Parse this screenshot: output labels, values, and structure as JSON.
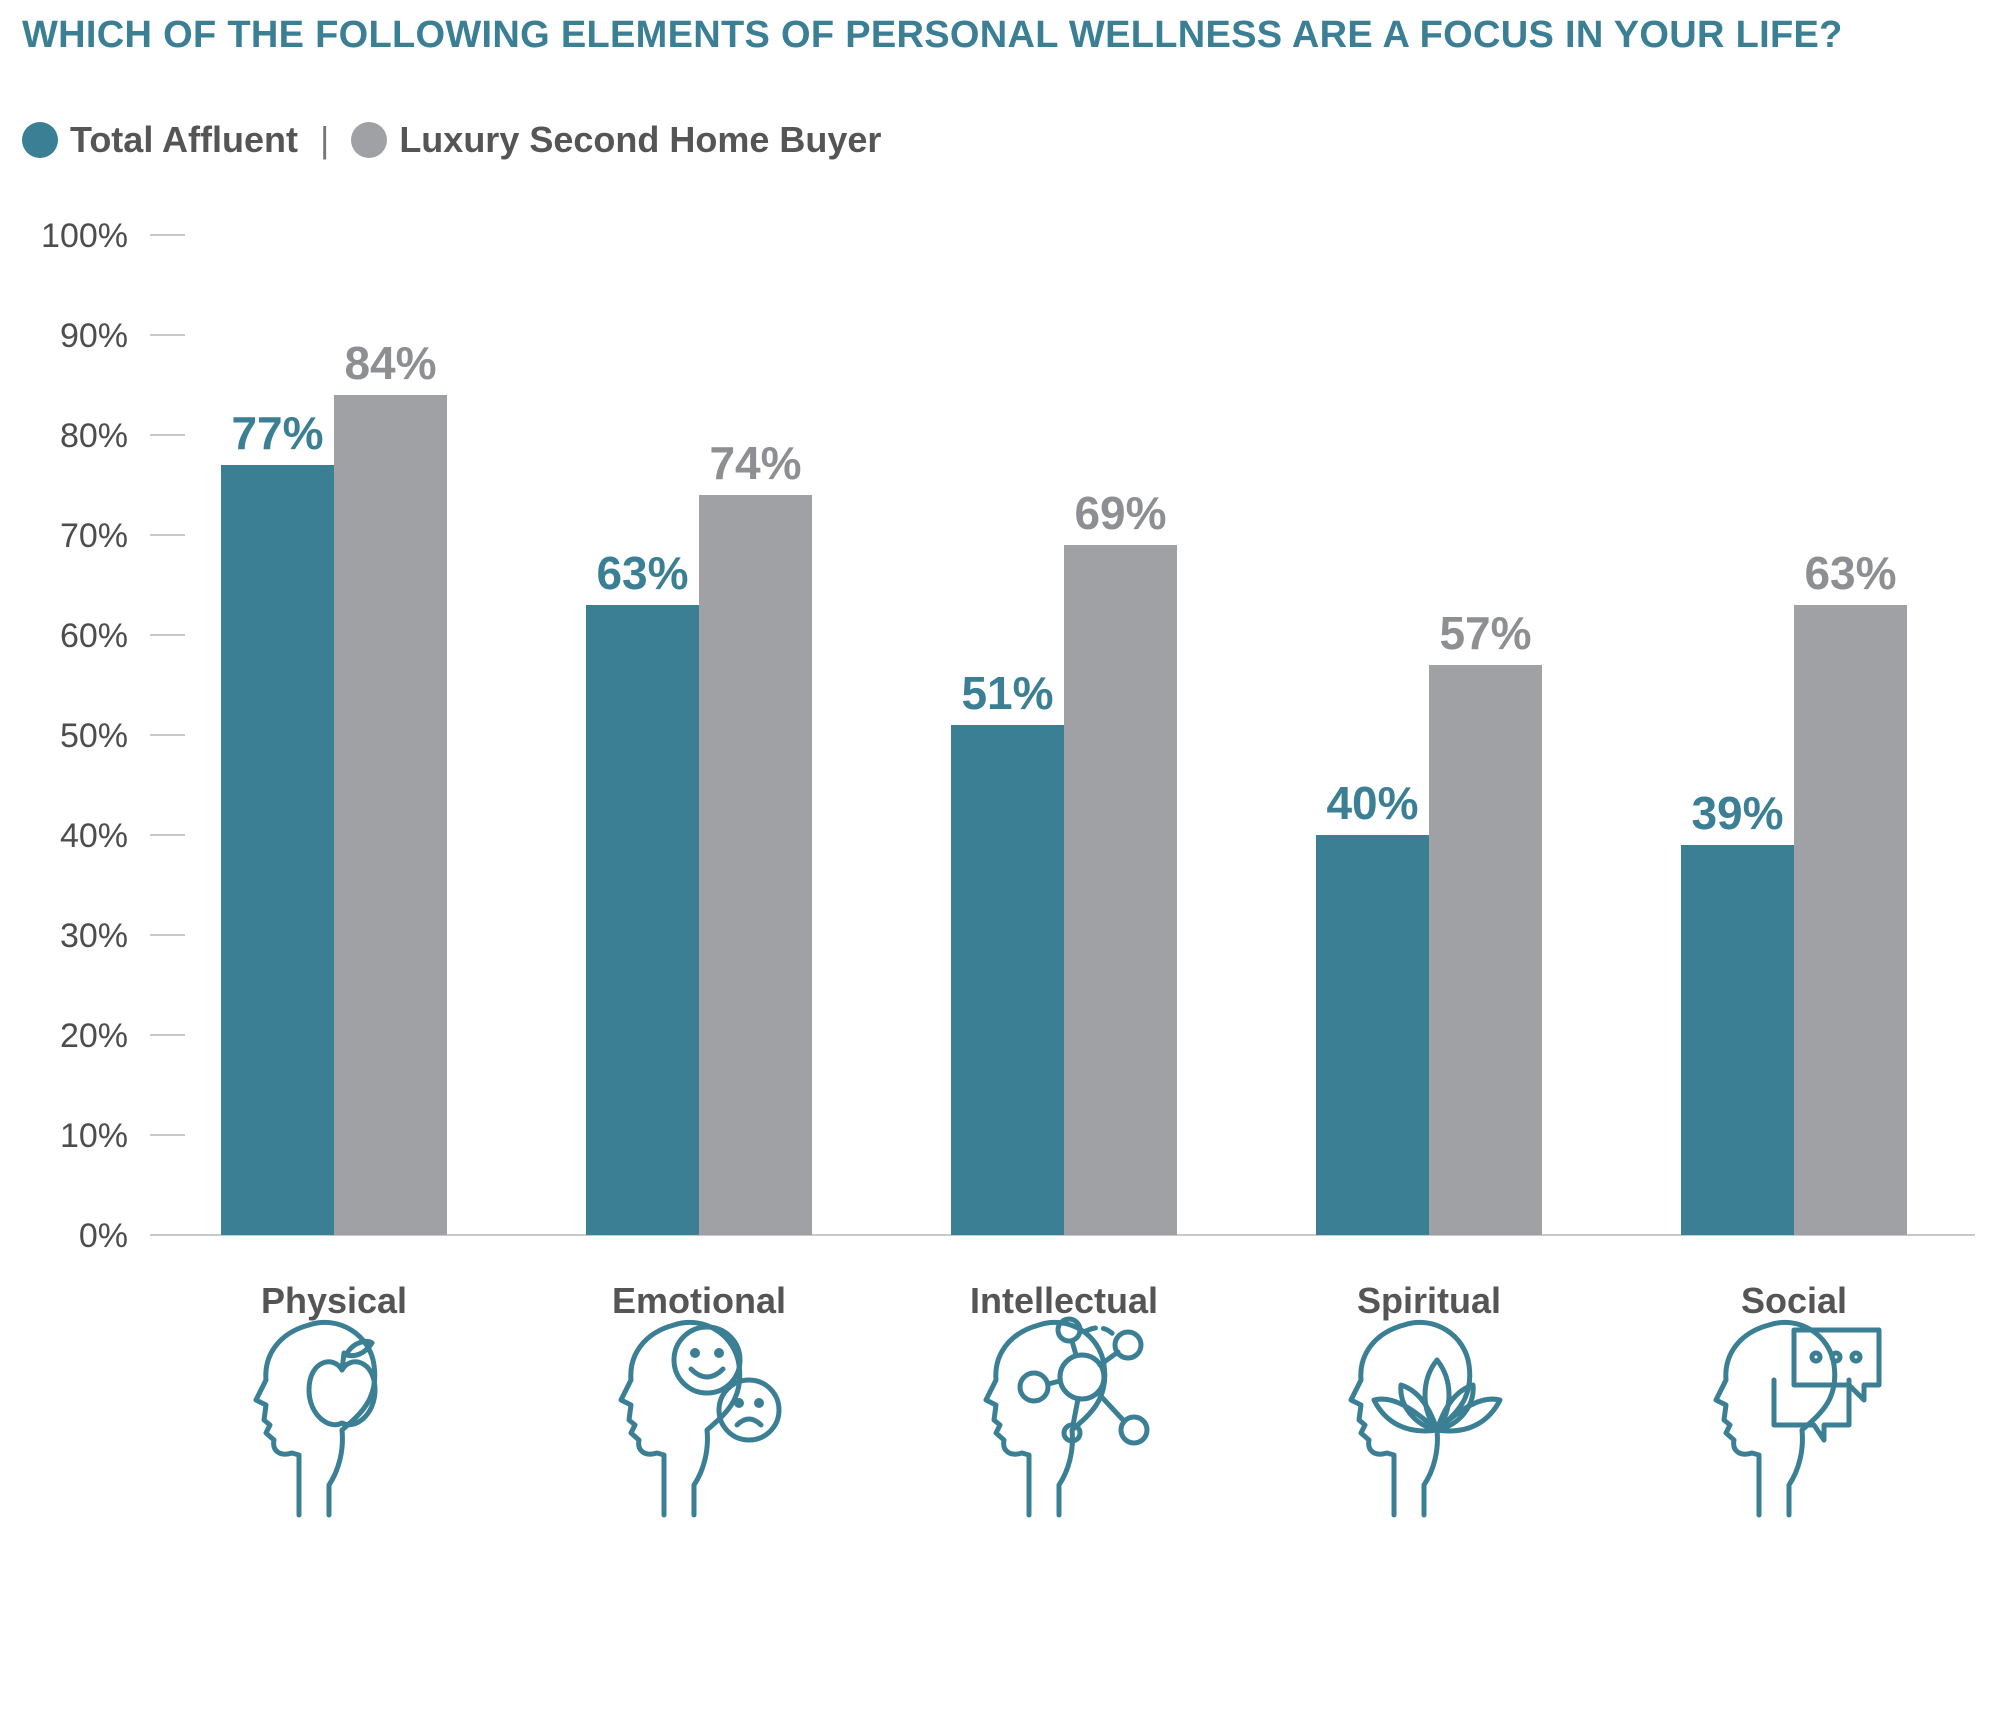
{
  "chart_data": {
    "type": "bar",
    "title": "WHICH OF THE FOLLOWING ELEMENTS OF PERSONAL WELLNESS ARE A FOCUS IN YOUR LIFE?",
    "legend_separator": "|",
    "categories": [
      "Physical",
      "Emotional",
      "Intellectual",
      "Spiritual",
      "Social"
    ],
    "category_icons": [
      "head-apple-icon",
      "head-faces-icon",
      "head-network-icon",
      "head-lotus-icon",
      "head-chat-icon"
    ],
    "series": [
      {
        "name": "Total Affluent",
        "color": "#3b7f94",
        "values": [
          77,
          63,
          51,
          40,
          39
        ],
        "labels": [
          "77%",
          "63%",
          "51%",
          "40%",
          "39%"
        ]
      },
      {
        "name": "Luxury Second Home Buyer",
        "color": "#a0a1a4",
        "values": [
          84,
          74,
          69,
          57,
          63
        ],
        "labels": [
          "84%",
          "74%",
          "69%",
          "57%",
          "63%"
        ]
      }
    ],
    "ylim": [
      0,
      100
    ],
    "yticks": [
      "0%",
      "10%",
      "20%",
      "30%",
      "40%",
      "50%",
      "60%",
      "70%",
      "80%",
      "90%",
      "100%"
    ],
    "xlabel": "",
    "ylabel": "",
    "legend_position": "top-left",
    "grid": false
  }
}
